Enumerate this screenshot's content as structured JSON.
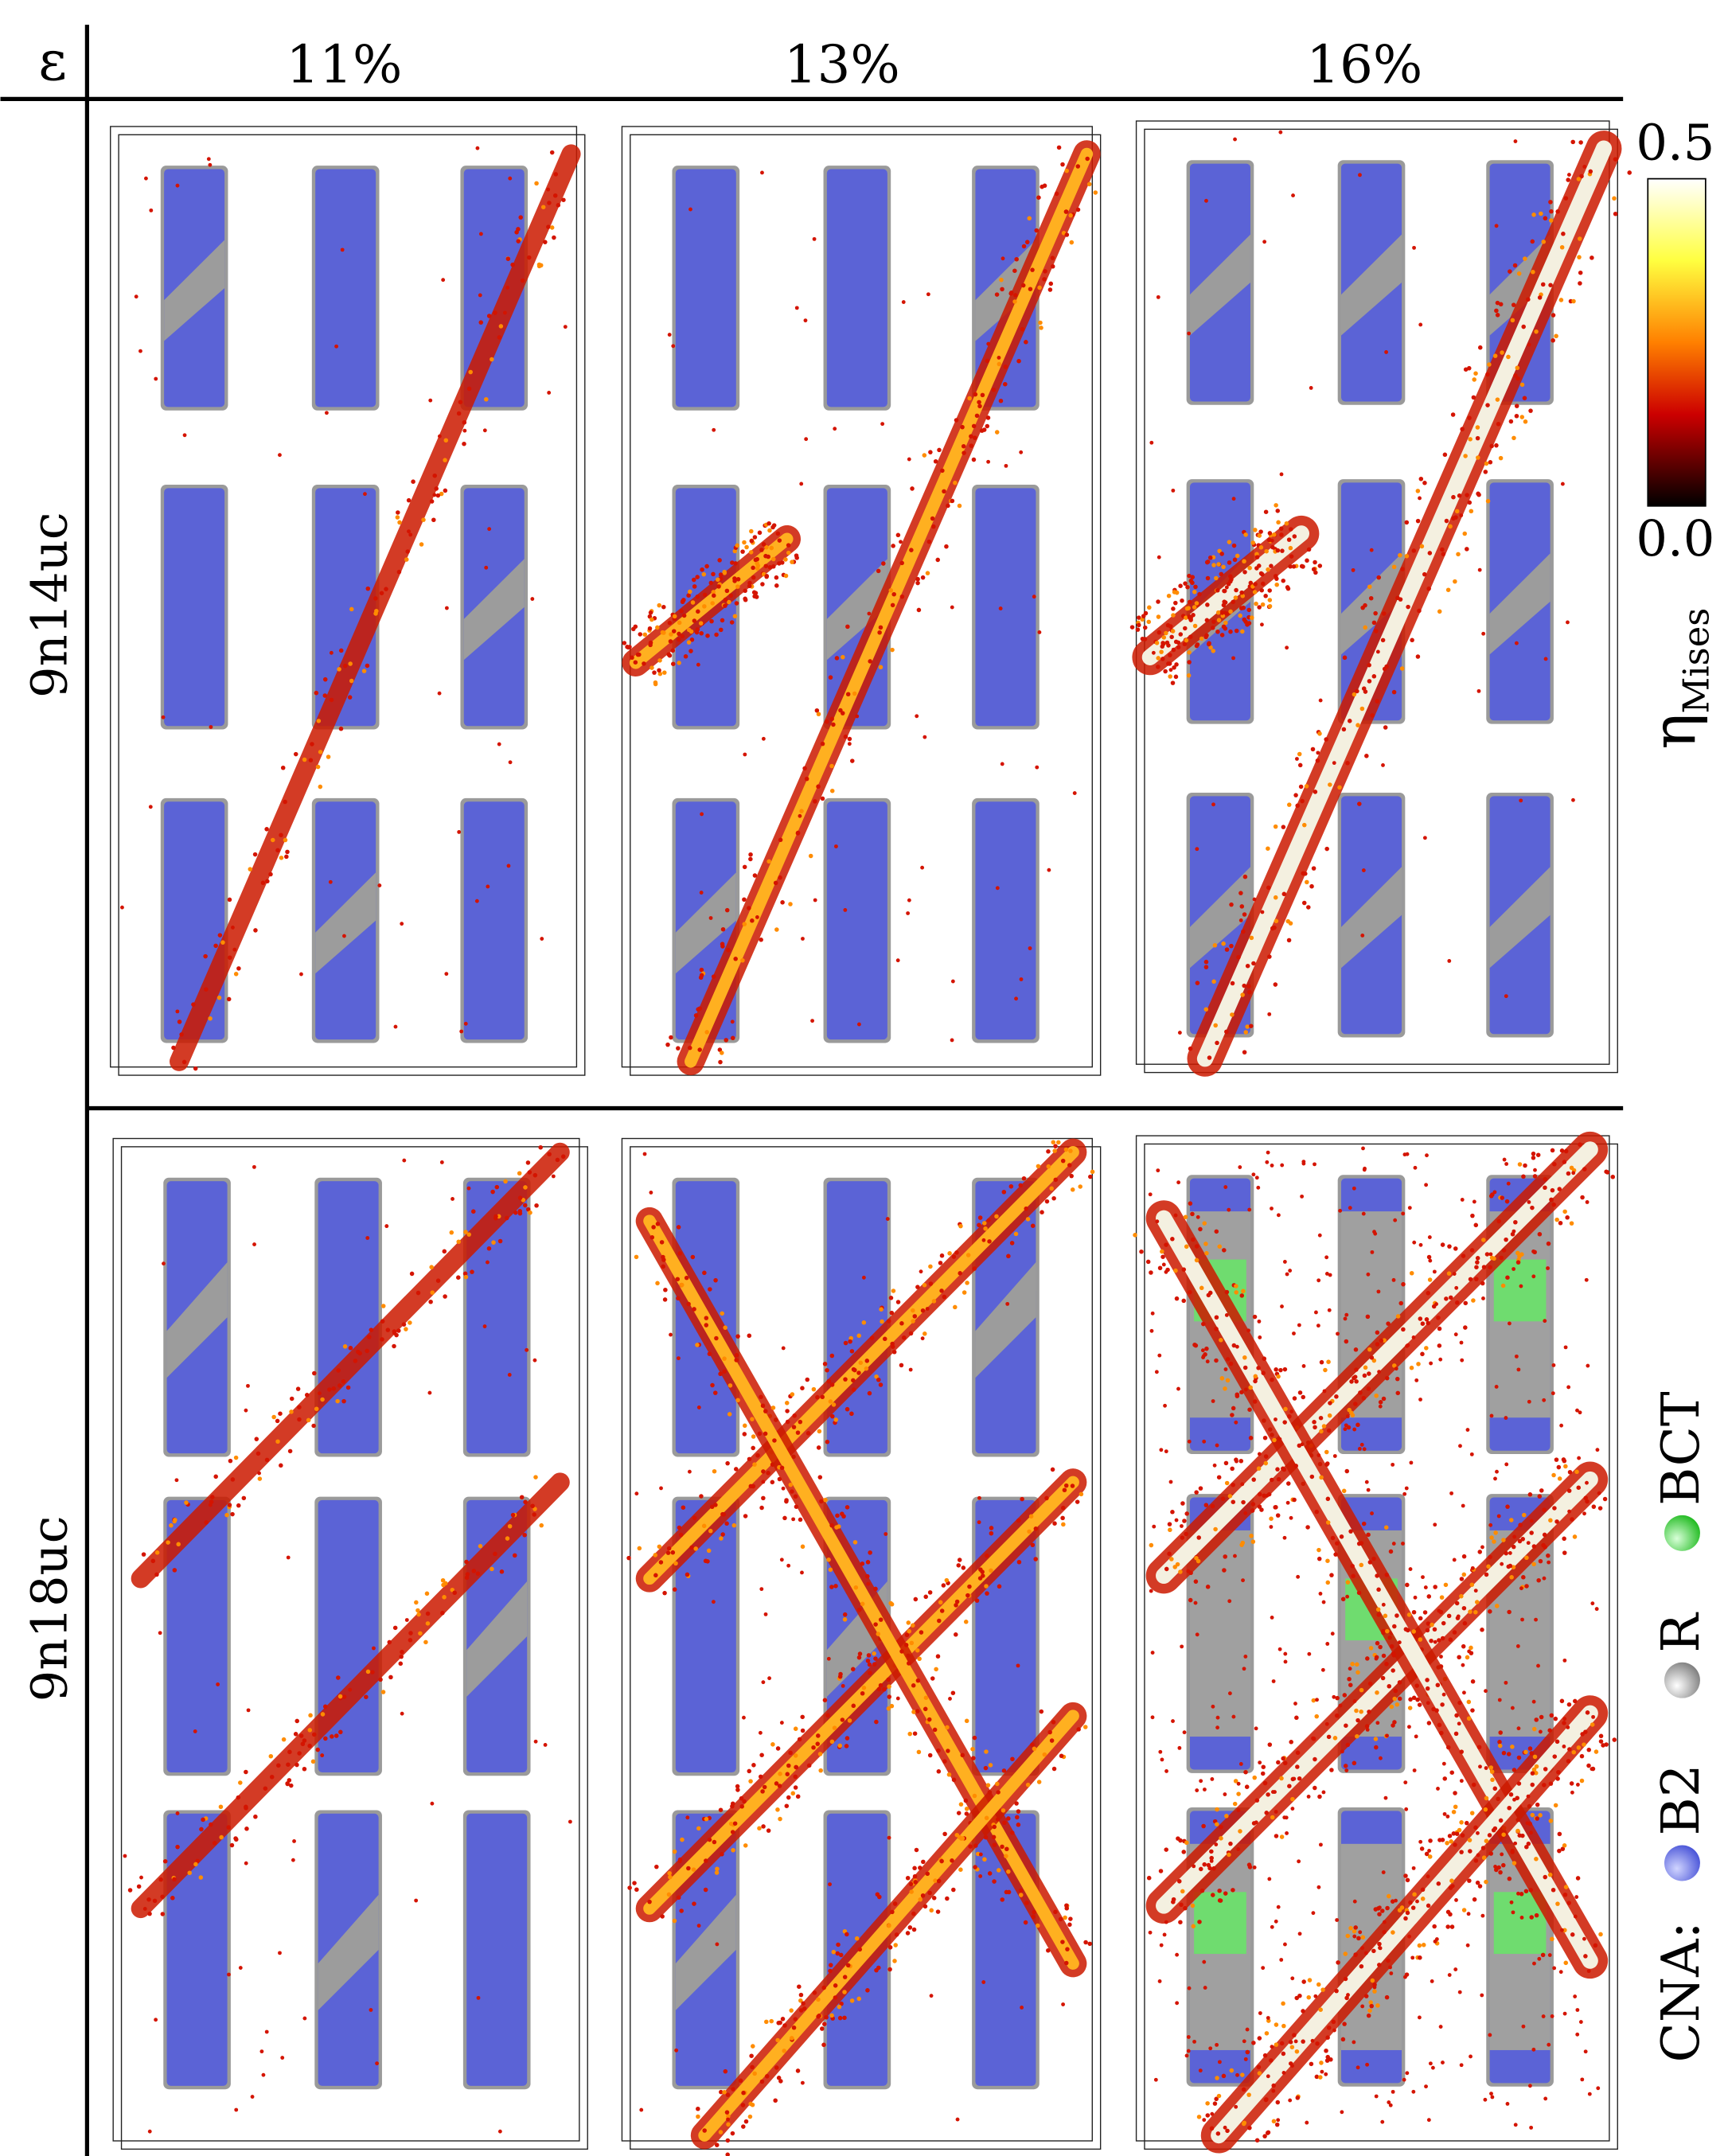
{
  "header": {
    "corner": "ε",
    "columns": [
      "11%",
      "13%",
      "16%"
    ]
  },
  "rows": [
    "9n14uc",
    "9n18uc"
  ],
  "colorbar": {
    "max": "0.5",
    "min": "0.0",
    "label": "η",
    "label_sub": "Mises"
  },
  "legend": {
    "title": "CNA:",
    "items": [
      "B2",
      "R",
      "BCT"
    ]
  }
}
